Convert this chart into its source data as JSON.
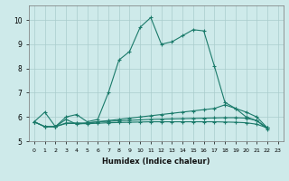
{
  "xlabel": "Humidex (Indice chaleur)",
  "bg_color": "#ceeaea",
  "grid_color": "#aacccc",
  "line_color": "#1a7a6a",
  "xlim": [
    -0.5,
    23.5
  ],
  "ylim": [
    5.0,
    10.6
  ],
  "yticks": [
    5,
    6,
    7,
    8,
    9,
    10
  ],
  "xticks": [
    0,
    1,
    2,
    3,
    4,
    5,
    6,
    7,
    8,
    9,
    10,
    11,
    12,
    13,
    14,
    15,
    16,
    17,
    18,
    19,
    20,
    21,
    22,
    23
  ],
  "series": [
    [
      5.8,
      6.2,
      5.6,
      6.0,
      6.1,
      5.8,
      5.9,
      7.0,
      8.35,
      8.7,
      9.7,
      10.1,
      9.0,
      9.1,
      9.35,
      9.6,
      9.55,
      8.1,
      6.6,
      6.35,
      6.0,
      5.85,
      5.5,
      null
    ],
    [
      5.8,
      5.6,
      5.6,
      5.9,
      5.7,
      5.75,
      5.8,
      5.85,
      5.9,
      5.95,
      6.0,
      6.05,
      6.1,
      6.15,
      6.2,
      6.25,
      6.3,
      6.35,
      6.5,
      6.35,
      6.2,
      6.0,
      5.55,
      null
    ],
    [
      5.8,
      5.6,
      5.6,
      5.75,
      5.75,
      5.75,
      5.8,
      5.82,
      5.84,
      5.86,
      5.88,
      5.9,
      5.91,
      5.92,
      5.93,
      5.94,
      5.95,
      5.96,
      5.97,
      5.97,
      5.95,
      5.85,
      5.55,
      null
    ],
    [
      5.8,
      5.6,
      5.6,
      5.73,
      5.73,
      5.72,
      5.74,
      5.76,
      5.77,
      5.78,
      5.79,
      5.8,
      5.8,
      5.8,
      5.8,
      5.8,
      5.8,
      5.8,
      5.79,
      5.78,
      5.76,
      5.7,
      5.55,
      null
    ]
  ]
}
